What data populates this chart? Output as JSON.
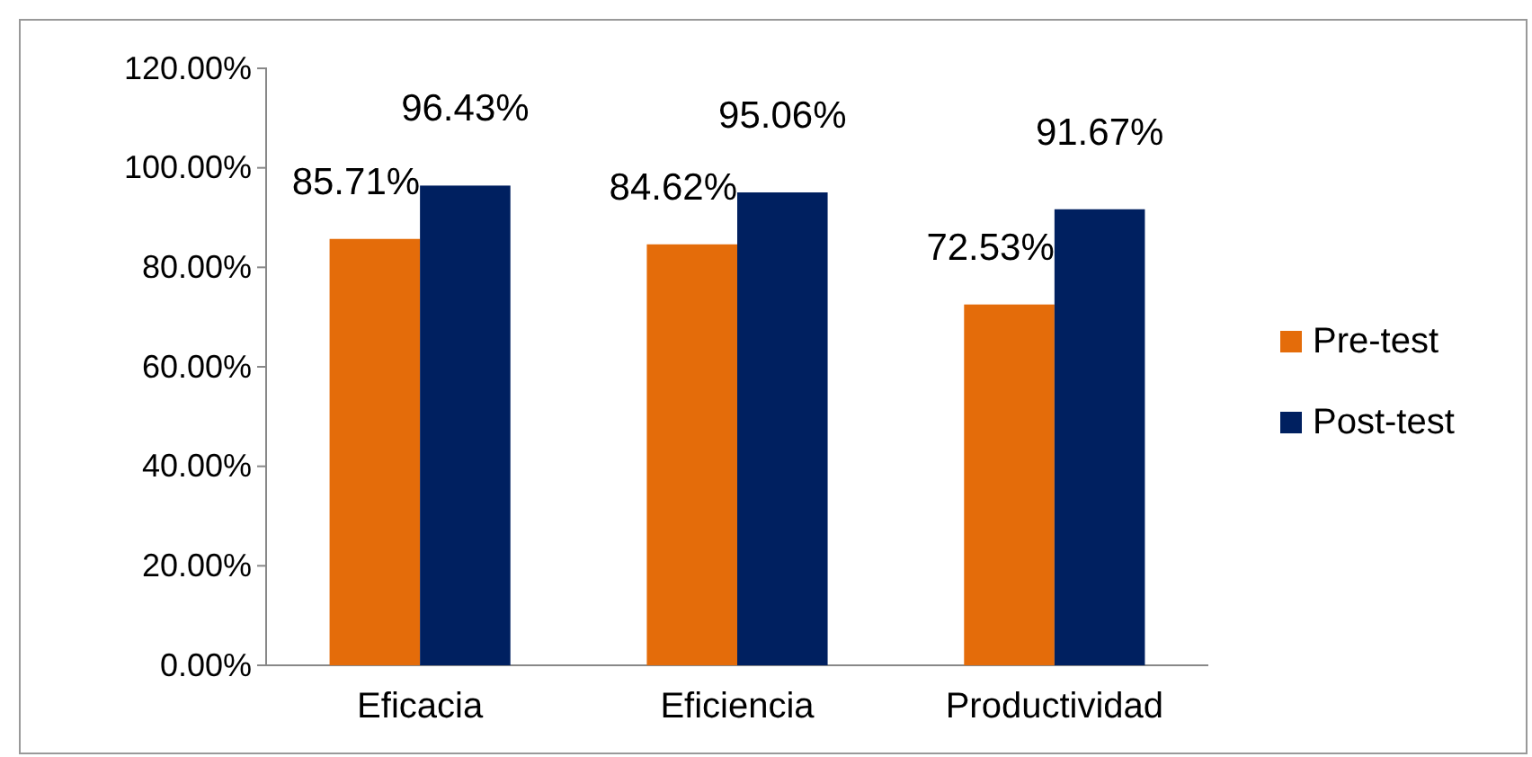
{
  "chart_data": {
    "type": "bar",
    "categories": [
      "Eficacia",
      "Eficiencia",
      "Productividad"
    ],
    "series": [
      {
        "name": "Pre-test",
        "color": "#e46c0a",
        "values": [
          85.71,
          84.62,
          72.53
        ],
        "value_labels": [
          "85.71%",
          "84.62%",
          "72.53%"
        ]
      },
      {
        "name": "Post-test",
        "color": "#002060",
        "values": [
          96.43,
          95.06,
          91.67
        ],
        "value_labels": [
          "96.43%",
          "95.06%",
          "91.67%"
        ]
      }
    ],
    "ylim": [
      0,
      120
    ],
    "yticks": [
      {
        "value": 0,
        "label": "0.00%"
      },
      {
        "value": 20,
        "label": "20.00%"
      },
      {
        "value": 40,
        "label": "40.00%"
      },
      {
        "value": 60,
        "label": "60.00%"
      },
      {
        "value": 80,
        "label": "80.00%"
      },
      {
        "value": 100,
        "label": "100.00%"
      },
      {
        "value": 120,
        "label": "120.00%"
      }
    ],
    "grid": false,
    "legend": "right"
  }
}
